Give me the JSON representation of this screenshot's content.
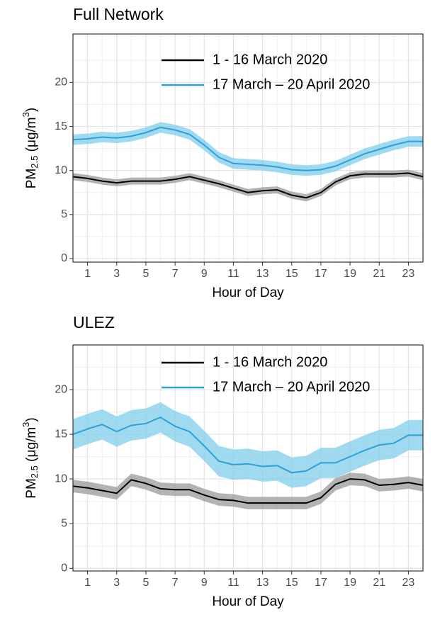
{
  "chart_data": [
    {
      "type": "line",
      "title": "Full Network",
      "x_label": "Hour of Day",
      "y_label": [
        "PM",
        "2.5",
        " (μg/m",
        "3",
        ")"
      ],
      "x": [
        0,
        1,
        2,
        3,
        4,
        5,
        6,
        7,
        8,
        9,
        10,
        11,
        12,
        13,
        14,
        15,
        16,
        17,
        18,
        19,
        20,
        21,
        22,
        23,
        24
      ],
      "xlim": [
        0,
        24
      ],
      "xticks": [
        1,
        3,
        5,
        7,
        9,
        11,
        13,
        15,
        17,
        19,
        21,
        23
      ],
      "ylim": [
        -0.4,
        25.5
      ],
      "yticks": [
        0,
        5,
        10,
        15,
        20
      ],
      "grid": true,
      "legend": "top right",
      "series": [
        {
          "name": "1 - 16 March 2020",
          "color": "#000000",
          "band_color": "#999999",
          "values": [
            9.3,
            9.1,
            8.8,
            8.6,
            8.8,
            8.8,
            8.8,
            9.0,
            9.3,
            8.9,
            8.5,
            8.0,
            7.5,
            7.7,
            7.8,
            7.2,
            6.9,
            7.5,
            8.7,
            9.4,
            9.6,
            9.6,
            9.6,
            9.7,
            9.3
          ],
          "lower": [
            8.9,
            8.7,
            8.4,
            8.2,
            8.4,
            8.4,
            8.4,
            8.6,
            8.9,
            8.5,
            8.1,
            7.6,
            7.1,
            7.3,
            7.4,
            6.8,
            6.5,
            7.1,
            8.3,
            9.0,
            9.2,
            9.2,
            9.2,
            9.3,
            8.9
          ],
          "upper": [
            9.7,
            9.5,
            9.2,
            9.0,
            9.2,
            9.2,
            9.2,
            9.4,
            9.7,
            9.3,
            8.9,
            8.4,
            7.9,
            8.1,
            8.2,
            7.6,
            7.3,
            7.9,
            9.1,
            9.8,
            10.0,
            10.0,
            10.0,
            10.1,
            9.7
          ]
        },
        {
          "name": "17 March – 20 April 2020",
          "color": "#2e9fd8",
          "band_color": "#7fcdeb",
          "values": [
            13.5,
            13.6,
            13.8,
            13.7,
            13.9,
            14.3,
            14.9,
            14.6,
            14.1,
            12.9,
            11.5,
            10.8,
            10.7,
            10.6,
            10.4,
            10.1,
            10.0,
            10.1,
            10.5,
            11.2,
            11.9,
            12.4,
            12.9,
            13.3,
            13.3
          ],
          "lower": [
            12.9,
            13.0,
            13.2,
            13.1,
            13.3,
            13.7,
            14.3,
            14.0,
            13.5,
            12.3,
            10.9,
            10.2,
            10.1,
            10.0,
            9.8,
            9.5,
            9.4,
            9.5,
            9.9,
            10.6,
            11.3,
            11.8,
            12.3,
            12.7,
            12.7
          ],
          "upper": [
            14.1,
            14.2,
            14.4,
            14.3,
            14.5,
            14.9,
            15.5,
            15.2,
            14.7,
            13.5,
            12.1,
            11.4,
            11.3,
            11.2,
            11.0,
            10.7,
            10.6,
            10.7,
            11.1,
            11.8,
            12.5,
            13.0,
            13.5,
            13.9,
            13.9
          ]
        }
      ]
    },
    {
      "type": "line",
      "title": "ULEZ",
      "x_label": "Hour of Day",
      "y_label": [
        "PM",
        "2.5",
        " (μg/m",
        "3",
        ")"
      ],
      "x": [
        0,
        1,
        2,
        3,
        4,
        5,
        6,
        7,
        8,
        9,
        10,
        11,
        12,
        13,
        14,
        15,
        16,
        17,
        18,
        19,
        20,
        21,
        22,
        23,
        24
      ],
      "xlim": [
        0,
        24
      ],
      "xticks": [
        1,
        3,
        5,
        7,
        9,
        11,
        13,
        15,
        17,
        19,
        21,
        23
      ],
      "ylim": [
        -0.3,
        25
      ],
      "yticks": [
        0,
        5,
        10,
        15,
        20
      ],
      "grid": true,
      "legend": "top right",
      "series": [
        {
          "name": "1 - 16 March 2020",
          "color": "#000000",
          "band_color": "#999999",
          "values": [
            9.2,
            9.0,
            8.7,
            8.4,
            9.9,
            9.5,
            8.9,
            8.8,
            8.8,
            8.2,
            7.7,
            7.6,
            7.3,
            7.3,
            7.3,
            7.3,
            7.3,
            7.9,
            9.4,
            10.0,
            9.9,
            9.3,
            9.4,
            9.6,
            9.3
          ],
          "lower": [
            8.5,
            8.3,
            8.0,
            7.7,
            9.2,
            8.8,
            8.2,
            8.1,
            8.1,
            7.5,
            7.0,
            6.9,
            6.6,
            6.6,
            6.6,
            6.6,
            6.6,
            7.2,
            8.7,
            9.3,
            9.2,
            8.6,
            8.7,
            8.9,
            8.6
          ],
          "upper": [
            9.9,
            9.7,
            9.4,
            9.1,
            10.6,
            10.2,
            9.6,
            9.5,
            9.5,
            8.9,
            8.4,
            8.3,
            8.0,
            8.0,
            8.0,
            8.0,
            8.0,
            8.6,
            10.1,
            10.7,
            10.6,
            10.0,
            10.1,
            10.3,
            10.0
          ]
        },
        {
          "name": "17 March – 20 April 2020",
          "color": "#2e9fd8",
          "band_color": "#7fcdeb",
          "values": [
            15.0,
            15.6,
            16.1,
            15.3,
            16.0,
            16.2,
            16.9,
            15.9,
            15.3,
            13.7,
            12.0,
            11.6,
            11.7,
            11.4,
            11.5,
            10.7,
            10.9,
            11.8,
            11.8,
            12.5,
            13.2,
            13.8,
            14.0,
            14.9,
            14.9
          ],
          "lower": [
            13.3,
            13.9,
            14.4,
            13.6,
            14.3,
            14.5,
            15.2,
            14.2,
            13.6,
            12.0,
            10.3,
            9.9,
            10.0,
            9.7,
            9.8,
            9.0,
            9.2,
            10.1,
            10.1,
            10.8,
            11.5,
            12.1,
            12.3,
            13.2,
            13.2
          ],
          "upper": [
            16.7,
            17.3,
            17.8,
            17.0,
            17.7,
            17.9,
            18.6,
            17.6,
            17.0,
            15.4,
            13.7,
            13.3,
            13.4,
            13.1,
            13.2,
            12.4,
            12.6,
            13.5,
            13.5,
            14.2,
            14.9,
            15.5,
            15.7,
            16.6,
            16.6
          ]
        }
      ]
    }
  ]
}
